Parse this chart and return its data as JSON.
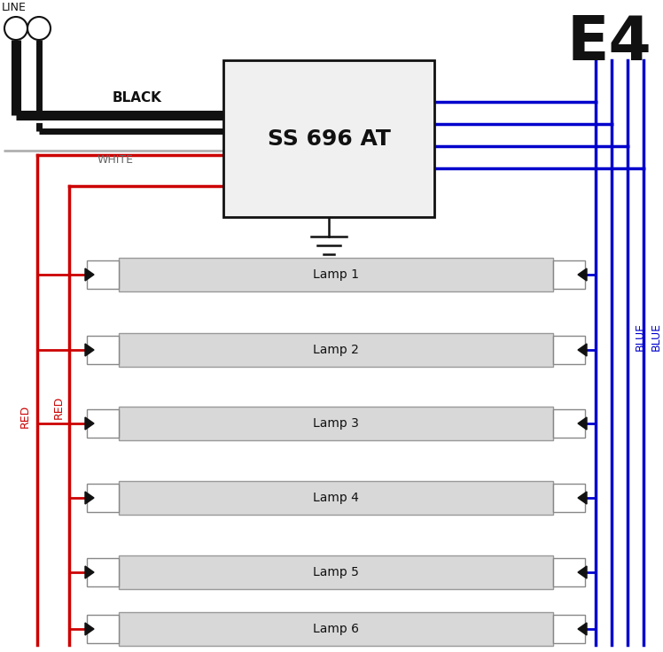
{
  "title": "E4",
  "ballast_label": "SS 696 AT",
  "line_label": "LINE",
  "black_label": "BLACK",
  "white_label": "WHITE",
  "red_label": "RED",
  "blue_label": "BLUE",
  "lamp_labels": [
    "Lamp 1",
    "Lamp 2",
    "Lamp 3",
    "Lamp 4",
    "Lamp 5",
    "Lamp 6"
  ],
  "bg_color": "#ffffff",
  "black_color": "#111111",
  "gray_color": "#aaaaaa",
  "red_color": "#cc0000",
  "blue_color": "#0000cc",
  "lamp_fill": "#d8d8d8",
  "lamp_edge": "#999999"
}
